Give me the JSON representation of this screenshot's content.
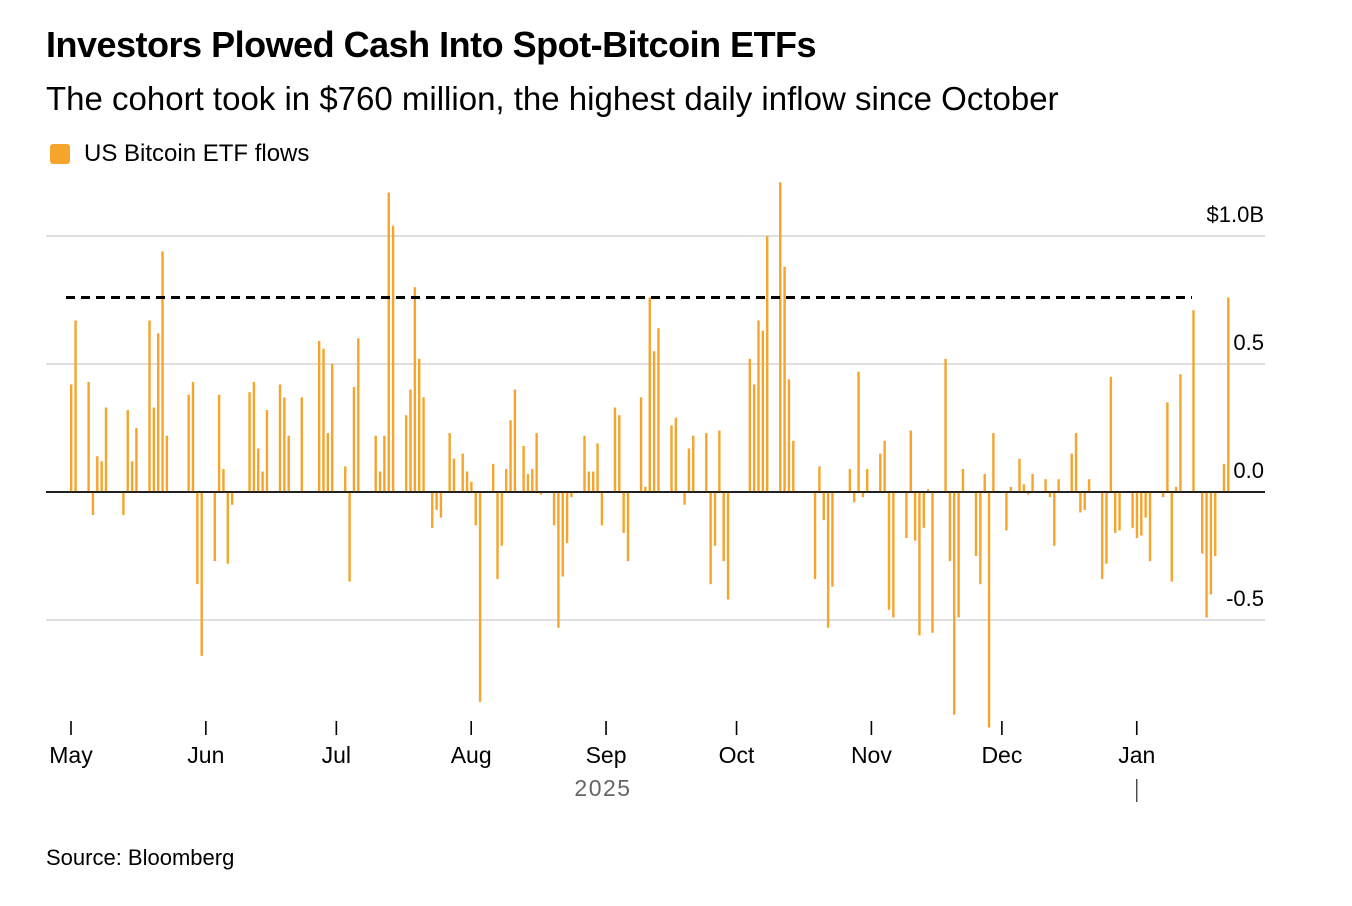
{
  "title": "Investors Plowed Cash Into Spot-Bitcoin ETFs",
  "subtitle": "The cohort took in $760 million, the highest daily inflow since October",
  "source": "Source: Bloomberg",
  "colors": {
    "bar": "#f5a42c",
    "grid": "#cccccc",
    "axis": "#000000",
    "reference": "#000000"
  },
  "chart_data": {
    "type": "bar",
    "legend": {
      "position": "top-left",
      "entries": [
        "US Bitcoin ETF flows"
      ]
    },
    "series": [
      {
        "name": "US Bitcoin ETF flows",
        "values": [
          0.42,
          0.67,
          0,
          0,
          0.43,
          -0.09,
          0.14,
          0.12,
          0.33,
          0,
          0,
          0,
          -0.09,
          0.32,
          0.12,
          0.25,
          0,
          0,
          0.67,
          0.33,
          0.62,
          0.94,
          0.22,
          0,
          0,
          0,
          0,
          0.38,
          0.43,
          -0.36,
          -0.64,
          0,
          0,
          -0.27,
          0.38,
          0.09,
          -0.28,
          -0.05,
          0,
          0,
          0,
          0.39,
          0.43,
          0.17,
          0.08,
          0.32,
          0,
          0,
          0.42,
          0.37,
          0.22,
          0,
          0,
          0.37,
          0,
          0,
          0,
          0.59,
          0.56,
          0.23,
          0.5,
          0,
          0,
          0.1,
          -0.35,
          0.41,
          0.6,
          0,
          0,
          0,
          0.22,
          0.08,
          0.22,
          1.17,
          1.04,
          0,
          0,
          0.3,
          0.4,
          0.8,
          0.52,
          0.37,
          0,
          -0.14,
          -0.07,
          -0.1,
          0,
          0.23,
          0.13,
          0,
          0.15,
          0.08,
          0.04,
          -0.13,
          -0.82,
          0,
          0,
          0.11,
          -0.34,
          -0.21,
          0.09,
          0.28,
          0.4,
          0,
          0.18,
          0.07,
          0.09,
          0.23,
          -0.01,
          0,
          0,
          -0.13,
          -0.53,
          -0.33,
          -0.2,
          -0.02,
          0,
          0,
          0.22,
          0.08,
          0.08,
          0.19,
          -0.13,
          0,
          0,
          0.33,
          0.3,
          -0.16,
          -0.27,
          0,
          0,
          0.37,
          0.02,
          0.76,
          0.55,
          0.64,
          0,
          0,
          0.26,
          0.29,
          0,
          -0.05,
          0.17,
          0.22,
          0,
          0,
          0.23,
          -0.36,
          -0.21,
          0.24,
          -0.27,
          -0.42,
          0,
          0,
          0,
          0,
          0.52,
          0.42,
          0.67,
          0.63,
          1.0,
          0,
          0,
          1.21,
          0.88,
          0.44,
          0.2,
          0,
          0,
          0,
          0,
          -0.34,
          0.1,
          -0.11,
          -0.53,
          -0.37,
          0,
          0,
          0,
          0.09,
          -0.04,
          0.47,
          -0.02,
          0.09,
          0,
          0,
          0.15,
          0.2,
          -0.46,
          -0.49,
          0,
          0,
          -0.18,
          0.24,
          -0.19,
          -0.56,
          -0.14,
          0.01,
          -0.55,
          0,
          0,
          0.52,
          -0.27,
          -0.87,
          -0.49,
          0.09,
          0,
          0,
          -0.25,
          -0.36,
          0.07,
          -0.92,
          0.23,
          0,
          0,
          -0.15,
          0.02,
          0,
          0.13,
          0.03,
          -0.01,
          0.07,
          0,
          0,
          0.05,
          -0.02,
          -0.21,
          0.05,
          0,
          0,
          0.15,
          0.23,
          -0.08,
          -0.07,
          0.05,
          0,
          0,
          -0.34,
          -0.28,
          0.45,
          -0.16,
          -0.15,
          0,
          0,
          -0.14,
          -0.18,
          -0.17,
          -0.1,
          -0.27,
          0,
          0,
          -0.02,
          0.35,
          -0.35,
          0.02,
          0.46,
          0,
          0,
          0.71,
          0,
          -0.24,
          -0.49,
          -0.4,
          -0.25,
          0,
          0.11,
          0.76
        ]
      }
    ],
    "x_ticks": [
      "May",
      "Jun",
      "Jul",
      "Aug",
      "Sep",
      "Oct",
      "Nov",
      "Dec",
      "Jan"
    ],
    "x_tick_positions": [
      0,
      31,
      61,
      92,
      123,
      153,
      184,
      214,
      245
    ],
    "year_label": "2025",
    "y_ticks": [
      1.0,
      0.5,
      0.0,
      -0.5
    ],
    "y_tick_labels": [
      "$1.0B",
      "0.5",
      "0.0",
      "-0.5"
    ],
    "ylim": [
      -0.92,
      1.21
    ],
    "reference_line": {
      "value": 0.76,
      "style": "dashed"
    },
    "grid": true
  }
}
